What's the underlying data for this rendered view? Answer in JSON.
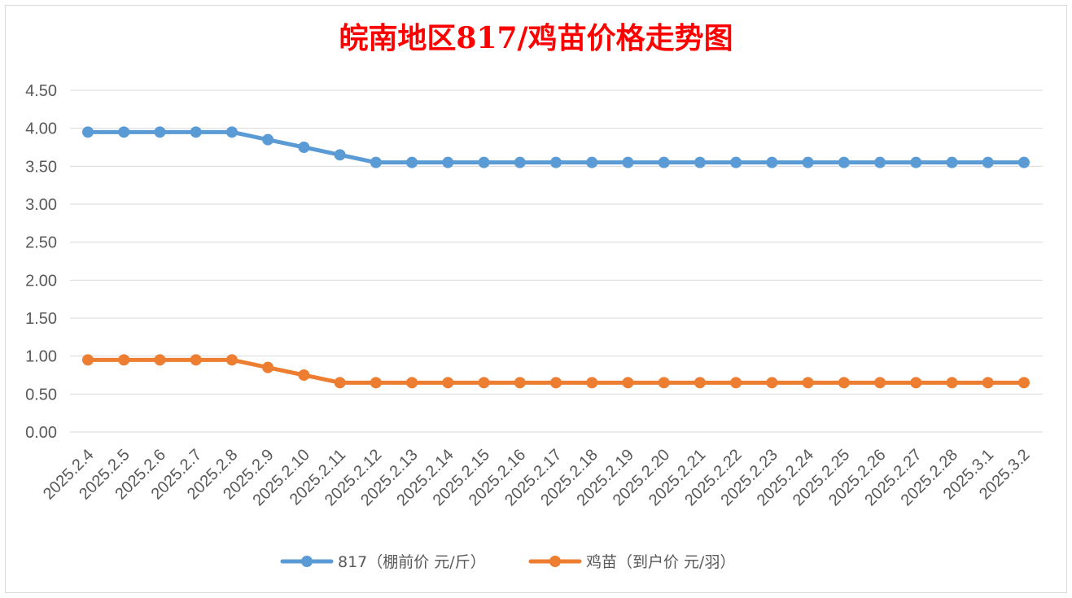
{
  "chart_data": {
    "type": "line",
    "title": "皖南地区817/鸡苗价格走势图",
    "xlabel": "",
    "ylabel": "",
    "ylim": [
      0,
      4.5
    ],
    "yticks": [
      "0.00",
      "0.50",
      "1.00",
      "1.50",
      "2.00",
      "2.50",
      "3.00",
      "3.50",
      "4.00",
      "4.50"
    ],
    "grid": "horizontal",
    "legend_position": "bottom",
    "categories": [
      "2025.2.4",
      "2025.2.5",
      "2025.2.6",
      "2025.2.7",
      "2025.2.8",
      "2025.2.9",
      "2025.2.10",
      "2025.2.11",
      "2025.2.12",
      "2025.2.13",
      "2025.2.14",
      "2025.2.15",
      "2025.2.16",
      "2025.2.17",
      "2025.2.18",
      "2025.2.19",
      "2025.2.20",
      "2025.2.21",
      "2025.2.22",
      "2025.2.23",
      "2025.2.24",
      "2025.2.25",
      "2025.2.26",
      "2025.2.27",
      "2025.2.28",
      "2025.3.1",
      "2025.3.2"
    ],
    "series": [
      {
        "name": "817（棚前价 元/斤）",
        "color": "#5b9bd5",
        "values": [
          3.95,
          3.95,
          3.95,
          3.95,
          3.95,
          3.85,
          3.75,
          3.65,
          3.55,
          3.55,
          3.55,
          3.55,
          3.55,
          3.55,
          3.55,
          3.55,
          3.55,
          3.55,
          3.55,
          3.55,
          3.55,
          3.55,
          3.55,
          3.55,
          3.55,
          3.55,
          3.55
        ]
      },
      {
        "name": "鸡苗（到户价 元/羽）",
        "color": "#ed7d31",
        "values": [
          0.95,
          0.95,
          0.95,
          0.95,
          0.95,
          0.85,
          0.75,
          0.65,
          0.65,
          0.65,
          0.65,
          0.65,
          0.65,
          0.65,
          0.65,
          0.65,
          0.65,
          0.65,
          0.65,
          0.65,
          0.65,
          0.65,
          0.65,
          0.65,
          0.65,
          0.65,
          0.65
        ]
      }
    ]
  }
}
